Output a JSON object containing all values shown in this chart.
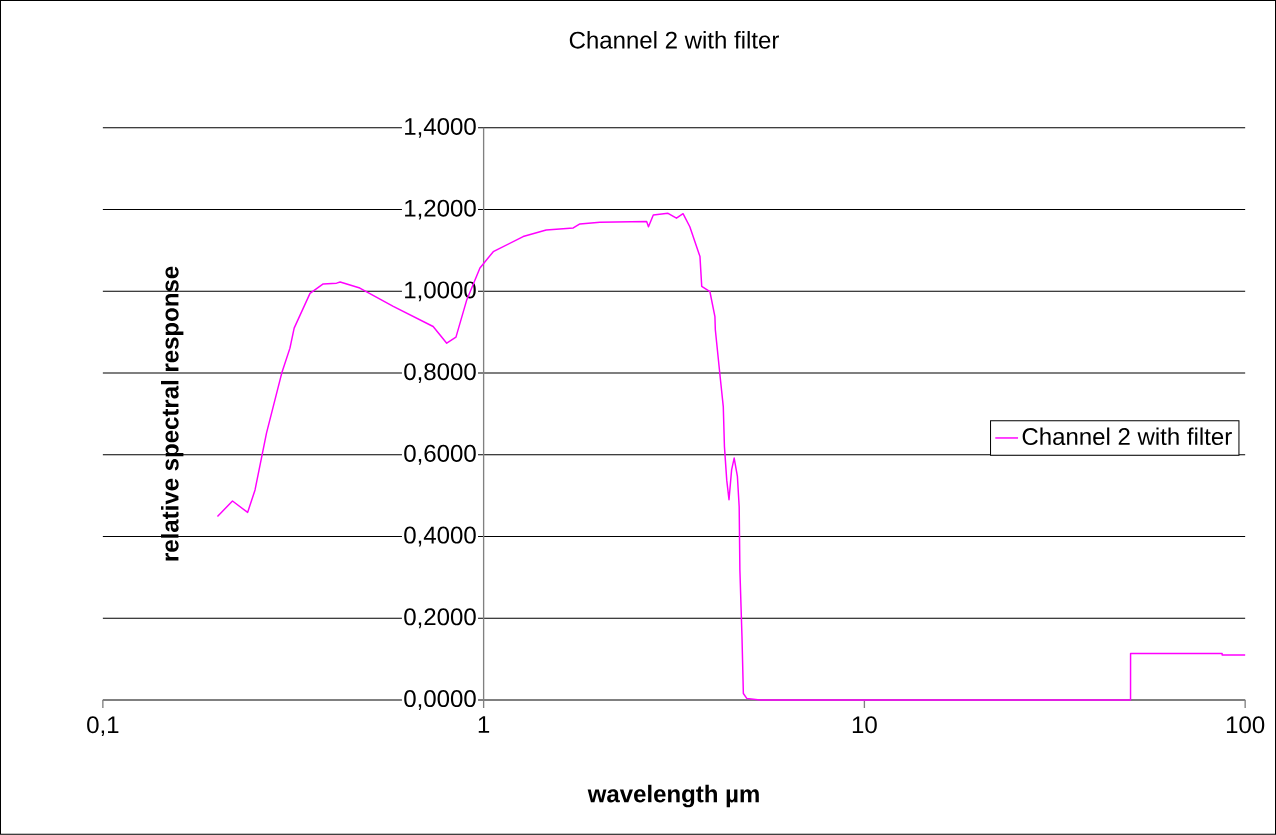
{
  "chart_data": {
    "type": "line",
    "title": "Channel 2 with filter",
    "xlabel": "wavelength µm",
    "ylabel": "relative spectral response",
    "log": "x",
    "xlim": [
      0.1,
      100
    ],
    "ylim": [
      0,
      1.4
    ],
    "xticks": [
      {
        "value": 0.1,
        "label": "0,1"
      },
      1,
      10,
      100
    ],
    "yticks": [
      {
        "value": 0,
        "label": "0,0000"
      },
      {
        "value": 0.2,
        "label": "0,2000"
      },
      {
        "value": 0.4,
        "label": "0,4000"
      },
      {
        "value": 0.6,
        "label": "0,6000"
      },
      {
        "value": 0.8,
        "label": "0,8000"
      },
      {
        "value": 1.0,
        "label": "1,0000"
      },
      {
        "value": 1.2,
        "label": "1,2000"
      },
      {
        "value": 1.4,
        "label": "1,4000"
      }
    ],
    "grid": "y",
    "legend": "right",
    "marker": "none",
    "line_style": "solid",
    "series": [
      {
        "name": "Channel 2 with filter",
        "color": "#ff00ff",
        "x": [
          0.2,
          0.219,
          0.24,
          0.251,
          0.269,
          0.295,
          0.31,
          0.318,
          0.35,
          0.379,
          0.411,
          0.42,
          0.473,
          0.579,
          0.737,
          0.8,
          0.846,
          0.903,
          0.978,
          1.06,
          1.27,
          1.46,
          1.72,
          1.79,
          2.02,
          2.68,
          2.71,
          2.79,
          3.05,
          3.21,
          3.34,
          3.48,
          3.7,
          3.74,
          3.93,
          4.05,
          4.06,
          4.18,
          4.26,
          4.29,
          4.35,
          4.41,
          4.48,
          4.55,
          4.64,
          4.69,
          4.71,
          4.77,
          4.81,
          4.91,
          5.32,
          50,
          50.01,
          87,
          87.01,
          100
        ],
        "values": [
          0.449,
          0.487,
          0.459,
          0.514,
          0.653,
          0.8,
          0.861,
          0.91,
          0.995,
          1.018,
          1.02,
          1.023,
          1.008,
          0.963,
          0.914,
          0.873,
          0.888,
          0.979,
          1.057,
          1.097,
          1.134,
          1.15,
          1.155,
          1.165,
          1.169,
          1.171,
          1.158,
          1.187,
          1.191,
          1.179,
          1.19,
          1.158,
          1.085,
          1.012,
          0.999,
          0.938,
          0.906,
          0.791,
          0.718,
          0.62,
          0.538,
          0.49,
          0.563,
          0.592,
          0.547,
          0.473,
          0.318,
          0.155,
          0.016,
          0.004,
          0,
          0,
          0.114,
          0.114,
          0.11,
          0.11
        ]
      }
    ]
  }
}
